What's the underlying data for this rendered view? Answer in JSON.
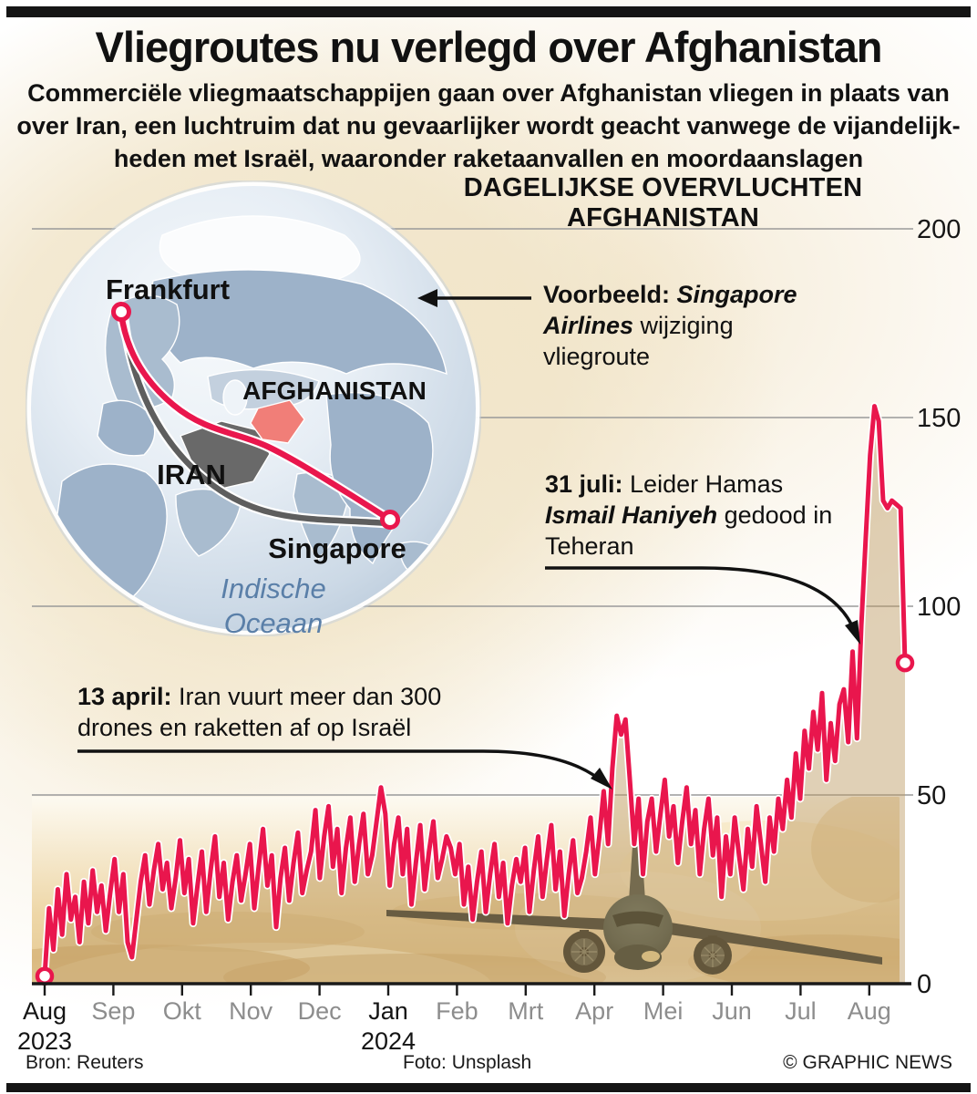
{
  "page": {
    "title": "Vliegroutes nu verlegd over Afghanistan",
    "subtitle_lines": [
      "Commerciële vliegmaatschappijen gaan over Afghanistan vliegen in plaats van",
      "over Iran, een luchtruim dat nu gevaarlijker wordt geacht vanwege de vijandelijk-",
      "heden met Israël, waaronder raketaanvallen en moordaanslagen"
    ]
  },
  "map": {
    "labels": {
      "frankfurt": "Frankfurt",
      "afghanistan": "AFGHANISTAN",
      "iran": "IRAN",
      "singapore": "Singapore",
      "ocean_line1": "Indische",
      "ocean_line2": "Oceaan"
    },
    "colors": {
      "new_route": "#e9164d",
      "old_route": "#5e5e5e",
      "iran_fill": "#696969",
      "afghanistan_fill": "#f17e78",
      "ocean_text": "#5a7fa8"
    }
  },
  "annotations": {
    "voorbeeld": {
      "bold": "Voorbeeld: ",
      "bold_italic": "Singapore Airlines",
      "rest": " wijziging vliegroute"
    },
    "juli31": {
      "bold": "31 juli:",
      "text1": " Leider Hamas ",
      "bold_italic": "Ismail Haniyeh",
      "text2": " gedood in Teheran"
    },
    "april13": {
      "bold": "13 april: ",
      "text": "Iran vuurt meer dan 300 drones en raketten af op Israël"
    }
  },
  "chart_data": {
    "type": "line",
    "title": "DAGELIJKSE OVERVLUCHTEN AFGHANISTAN",
    "ylim": [
      0,
      200
    ],
    "y_ticks": [
      0,
      50,
      100,
      150,
      200
    ],
    "grid": true,
    "legend": false,
    "x_range": "Aug 2023 – medio Aug 2024",
    "x_labels": [
      {
        "label": "Aug",
        "year": "2023",
        "emphasis": true
      },
      {
        "label": "Sep"
      },
      {
        "label": "Okt"
      },
      {
        "label": "Nov"
      },
      {
        "label": "Dec"
      },
      {
        "label": "Jan",
        "year": "2024",
        "emphasis": true
      },
      {
        "label": "Feb"
      },
      {
        "label": "Mrt"
      },
      {
        "label": "Apr"
      },
      {
        "label": "Mei"
      },
      {
        "label": "Jun"
      },
      {
        "label": "Jul"
      },
      {
        "label": "Aug"
      }
    ],
    "series": [
      {
        "name": "Dagelijkse overvluchten Afghanistan",
        "color": "#e9164d",
        "start_marker": true,
        "end_marker": true,
        "values": [
          2,
          20,
          9,
          25,
          13,
          29,
          17,
          23,
          11,
          27,
          16,
          30,
          19,
          26,
          14,
          24,
          33,
          19,
          29,
          11,
          7,
          17,
          27,
          34,
          21,
          30,
          37,
          25,
          32,
          20,
          28,
          38,
          24,
          33,
          16,
          26,
          35,
          19,
          30,
          39,
          23,
          32,
          17,
          27,
          34,
          22,
          29,
          37,
          20,
          31,
          41,
          26,
          34,
          15,
          28,
          36,
          22,
          32,
          40,
          24,
          30,
          35,
          46,
          28,
          39,
          47,
          31,
          41,
          24,
          36,
          44,
          27,
          37,
          45,
          29,
          34,
          43,
          52,
          45,
          26,
          37,
          44,
          29,
          41,
          21,
          32,
          42,
          25,
          35,
          43,
          28,
          33,
          39,
          36,
          29,
          37,
          21,
          31,
          17,
          27,
          35,
          19,
          29,
          37,
          23,
          32,
          16,
          26,
          33,
          27,
          36,
          19,
          30,
          39,
          23,
          33,
          42,
          25,
          35,
          18,
          29,
          38,
          24,
          28,
          35,
          44,
          29,
          39,
          51,
          37,
          57,
          71,
          66,
          70,
          54,
          37,
          49,
          29,
          43,
          49,
          35,
          45,
          54,
          39,
          47,
          32,
          43,
          52,
          37,
          46,
          29,
          41,
          49,
          34,
          44,
          23,
          39,
          29,
          44,
          34,
          25,
          41,
          31,
          47,
          37,
          27,
          44,
          35,
          49,
          41,
          54,
          44,
          61,
          49,
          67,
          57,
          72,
          62,
          77,
          54,
          69,
          59,
          74,
          78,
          64,
          88,
          65,
          95,
          118,
          140,
          153,
          149,
          128,
          126,
          128,
          127,
          126,
          85
        ]
      }
    ]
  },
  "footer": {
    "source": "Bron: Reuters",
    "photo": "Foto: Unsplash",
    "credit": "© GRAPHIC NEWS"
  }
}
